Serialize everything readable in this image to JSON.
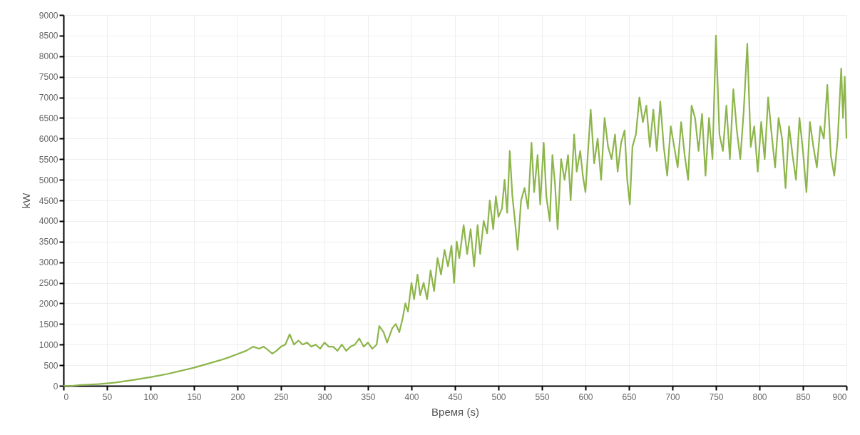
{
  "chart_data": {
    "type": "line",
    "xlabel": "Время (s)",
    "ylabel": "kW",
    "xlim": [
      0,
      900
    ],
    "ylim": [
      0,
      9000
    ],
    "xticks": [
      0,
      50,
      100,
      150,
      200,
      250,
      300,
      350,
      400,
      450,
      500,
      550,
      600,
      650,
      700,
      750,
      800,
      850,
      900
    ],
    "yticks": [
      0,
      500,
      1000,
      1500,
      2000,
      2500,
      3000,
      3500,
      4000,
      4500,
      5000,
      5500,
      6000,
      6500,
      7000,
      7500,
      8000,
      8500,
      9000
    ],
    "grid": true,
    "marker": "none",
    "line_style": "solid",
    "series": [
      {
        "color": "#8db54b",
        "x": [
          0,
          10,
          20,
          30,
          40,
          50,
          60,
          70,
          80,
          90,
          100,
          110,
          120,
          130,
          140,
          150,
          160,
          170,
          180,
          190,
          200,
          210,
          218,
          225,
          230,
          235,
          240,
          245,
          250,
          255,
          260,
          265,
          270,
          275,
          280,
          285,
          290,
          295,
          300,
          305,
          310,
          315,
          320,
          325,
          330,
          335,
          340,
          345,
          350,
          355,
          360,
          363,
          368,
          372,
          378,
          382,
          386,
          390,
          393,
          396,
          400,
          403,
          407,
          410,
          414,
          418,
          422,
          426,
          430,
          434,
          438,
          442,
          446,
          449,
          452,
          455,
          460,
          464,
          468,
          472,
          476,
          479,
          483,
          487,
          490,
          494,
          497,
          500,
          504,
          507,
          510,
          513,
          516,
          519,
          522,
          526,
          530,
          534,
          538,
          541,
          545,
          548,
          552,
          555,
          559,
          562,
          565,
          568,
          572,
          576,
          580,
          583,
          587,
          590,
          594,
          597,
          600,
          603,
          606,
          610,
          614,
          618,
          622,
          626,
          630,
          634,
          637,
          641,
          645,
          648,
          651,
          654,
          658,
          662,
          666,
          670,
          674,
          678,
          682,
          686,
          690,
          694,
          698,
          702,
          706,
          710,
          714,
          718,
          722,
          726,
          730,
          734,
          738,
          742,
          746,
          750,
          754,
          758,
          762,
          766,
          770,
          774,
          778,
          782,
          786,
          790,
          794,
          798,
          802,
          806,
          810,
          814,
          818,
          822,
          826,
          830,
          834,
          838,
          842,
          846,
          850,
          854,
          858,
          862,
          866,
          870,
          874,
          878,
          882,
          886,
          890,
          894,
          896,
          898,
          900
        ],
        "values": [
          0,
          0,
          20,
          30,
          40,
          60,
          80,
          110,
          140,
          175,
          210,
          250,
          290,
          340,
          390,
          440,
          500,
          560,
          620,
          690,
          770,
          850,
          950,
          900,
          950,
          870,
          780,
          850,
          950,
          1000,
          1250,
          1000,
          1100,
          1000,
          1050,
          950,
          1000,
          900,
          1050,
          950,
          950,
          850,
          1000,
          850,
          950,
          1000,
          1150,
          950,
          1050,
          900,
          1000,
          1450,
          1300,
          1050,
          1400,
          1500,
          1300,
          1650,
          2000,
          1800,
          2500,
          2100,
          2700,
          2200,
          2500,
          2100,
          2800,
          2300,
          3100,
          2700,
          3300,
          2900,
          3400,
          2500,
          3500,
          3100,
          3900,
          3200,
          3800,
          2900,
          3900,
          3200,
          4000,
          3700,
          4500,
          3800,
          4600,
          4100,
          4300,
          5000,
          4200,
          5700,
          4600,
          4000,
          3300,
          4500,
          4800,
          4300,
          5900,
          4700,
          5600,
          4400,
          5900,
          4600,
          4000,
          5600,
          4900,
          3800,
          5500,
          5000,
          5600,
          4500,
          6100,
          5200,
          5700,
          5100,
          4700,
          5700,
          6700,
          5400,
          6000,
          5000,
          6500,
          5800,
          5500,
          6100,
          5200,
          5900,
          6200,
          5000,
          4400,
          5800,
          6100,
          7000,
          6400,
          6800,
          5800,
          6700,
          5700,
          6900,
          5800,
          5100,
          6300,
          5800,
          5300,
          6400,
          5600,
          5000,
          6800,
          6500,
          5700,
          6600,
          5100,
          6500,
          5500,
          8500,
          6100,
          5700,
          6800,
          5500,
          7200,
          6200,
          5500,
          6700,
          8300,
          5800,
          6300,
          5200,
          6400,
          5500,
          7000,
          6100,
          5300,
          6500,
          6000,
          4800,
          6300,
          5600,
          5000,
          6500,
          5700,
          4700,
          6400,
          5800,
          5300,
          6300,
          6000,
          7300,
          5600,
          5100,
          6000,
          7700,
          6500,
          7500,
          6000
        ]
      }
    ]
  }
}
